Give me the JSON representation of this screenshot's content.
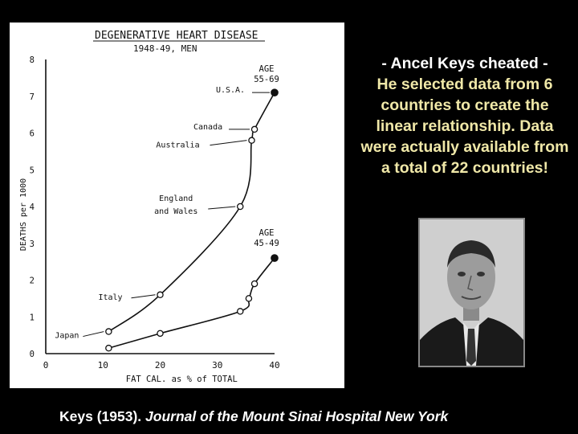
{
  "chart_data": {
    "type": "line",
    "title": "DEGENERATIVE HEART DISEASE",
    "subtitle": "1948-49, MEN",
    "xlabel": "FAT CAL. as % of TOTAL",
    "ylabel": "DEATHS per 1000",
    "xlim": [
      0,
      40
    ],
    "ylim": [
      0,
      8
    ],
    "x_ticks": [
      "0",
      "10",
      "20",
      "30",
      "40"
    ],
    "y_ticks": [
      "0",
      "1",
      "2",
      "3",
      "4",
      "5",
      "6",
      "7",
      "8"
    ],
    "series": [
      {
        "name": "AGE 55-69",
        "label_lines": [
          "AGE",
          "55-69"
        ],
        "points": [
          {
            "x": 11,
            "y": 0.6,
            "label": "Japan"
          },
          {
            "x": 20,
            "y": 1.6,
            "label": "Italy"
          },
          {
            "x": 34,
            "y": 4.0,
            "label": "England and Wales"
          },
          {
            "x": 36,
            "y": 5.8,
            "label": "Australia"
          },
          {
            "x": 36.5,
            "y": 6.1,
            "label": "Canada"
          },
          {
            "x": 40,
            "y": 7.1,
            "label": "U.S.A."
          }
        ]
      },
      {
        "name": "AGE 45-49",
        "label_lines": [
          "AGE",
          "45-49"
        ],
        "points": [
          {
            "x": 11,
            "y": 0.15
          },
          {
            "x": 20,
            "y": 0.55
          },
          {
            "x": 34,
            "y": 1.15
          },
          {
            "x": 35.5,
            "y": 1.5
          },
          {
            "x": 36.5,
            "y": 1.9
          },
          {
            "x": 40,
            "y": 2.6
          }
        ]
      }
    ],
    "annotations": [
      {
        "text": "Japan",
        "series": 0,
        "point": 0
      },
      {
        "text": "Italy",
        "series": 0,
        "point": 1
      },
      {
        "text": "England",
        "series": 0,
        "point": 2
      },
      {
        "text": "and Wales",
        "series": 0,
        "point": 2
      },
      {
        "text": "Australia",
        "series": 0,
        "point": 3
      },
      {
        "text": "Canada",
        "series": 0,
        "point": 4
      },
      {
        "text": "U.S.A.",
        "series": 0,
        "point": 5
      }
    ],
    "grid": false,
    "legend": "none",
    "line_color": "#111111"
  },
  "side_text": {
    "line1": "- Ancel Keys cheated -",
    "line2": "He selected data from 6 countries to create the linear relationship. Data were actually available from a total of 22 countries!"
  },
  "photo": {
    "description_icon": "portrait-photo"
  },
  "caption": {
    "prefix": "Keys (1953). ",
    "journal": "Journal of the Mount Sinai Hospital New York"
  },
  "colors": {
    "background": "#000000",
    "panel": "#ffffff",
    "heading_text": "#ffffff",
    "body_text": "#f0e8a8"
  }
}
